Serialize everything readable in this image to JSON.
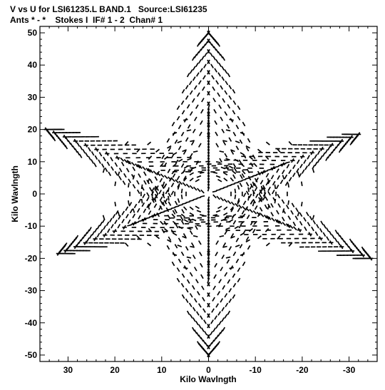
{
  "header": {
    "line1": "V vs U for LSI61235.L BAND.1   Source:LSI61235",
    "line2": "Ants * - *    Stokes I  IF# 1 - 2  Chan# 1"
  },
  "chart_data": {
    "type": "scatter",
    "title": "V vs U for LSI61235.L BAND.1   Source:LSI61235",
    "subtitle": "Ants * - *    Stokes I  IF# 1 - 2  Chan# 1",
    "xlabel": "Kilo Wavlngth",
    "ylabel": "Kilo Wavlngth",
    "xlim": [
      36,
      -36
    ],
    "ylim": [
      -52,
      52
    ],
    "x_ticks": [
      30,
      20,
      10,
      0,
      -10,
      -20,
      -30
    ],
    "y_ticks": [
      50,
      40,
      30,
      20,
      10,
      0,
      -10,
      -20,
      -30,
      -40,
      -50
    ],
    "x_tick_labels": [
      "30",
      "20",
      "10",
      "0",
      "-10",
      "-20",
      "-30"
    ],
    "y_tick_labels": [
      "50",
      "40",
      "30",
      "20",
      "10",
      "0",
      "-10",
      "-20",
      "-30",
      "-40",
      "-50"
    ],
    "grid": false,
    "marker_color": "#000000",
    "arms": [
      {
        "angle_deg": 90,
        "length": 50
      },
      {
        "angle_deg": 270,
        "length": 50
      },
      {
        "angle_deg": 30,
        "length": 40
      },
      {
        "angle_deg": 210,
        "length": 40
      },
      {
        "angle_deg": 150,
        "length": 37
      },
      {
        "angle_deg": 330,
        "length": 37
      }
    ]
  }
}
